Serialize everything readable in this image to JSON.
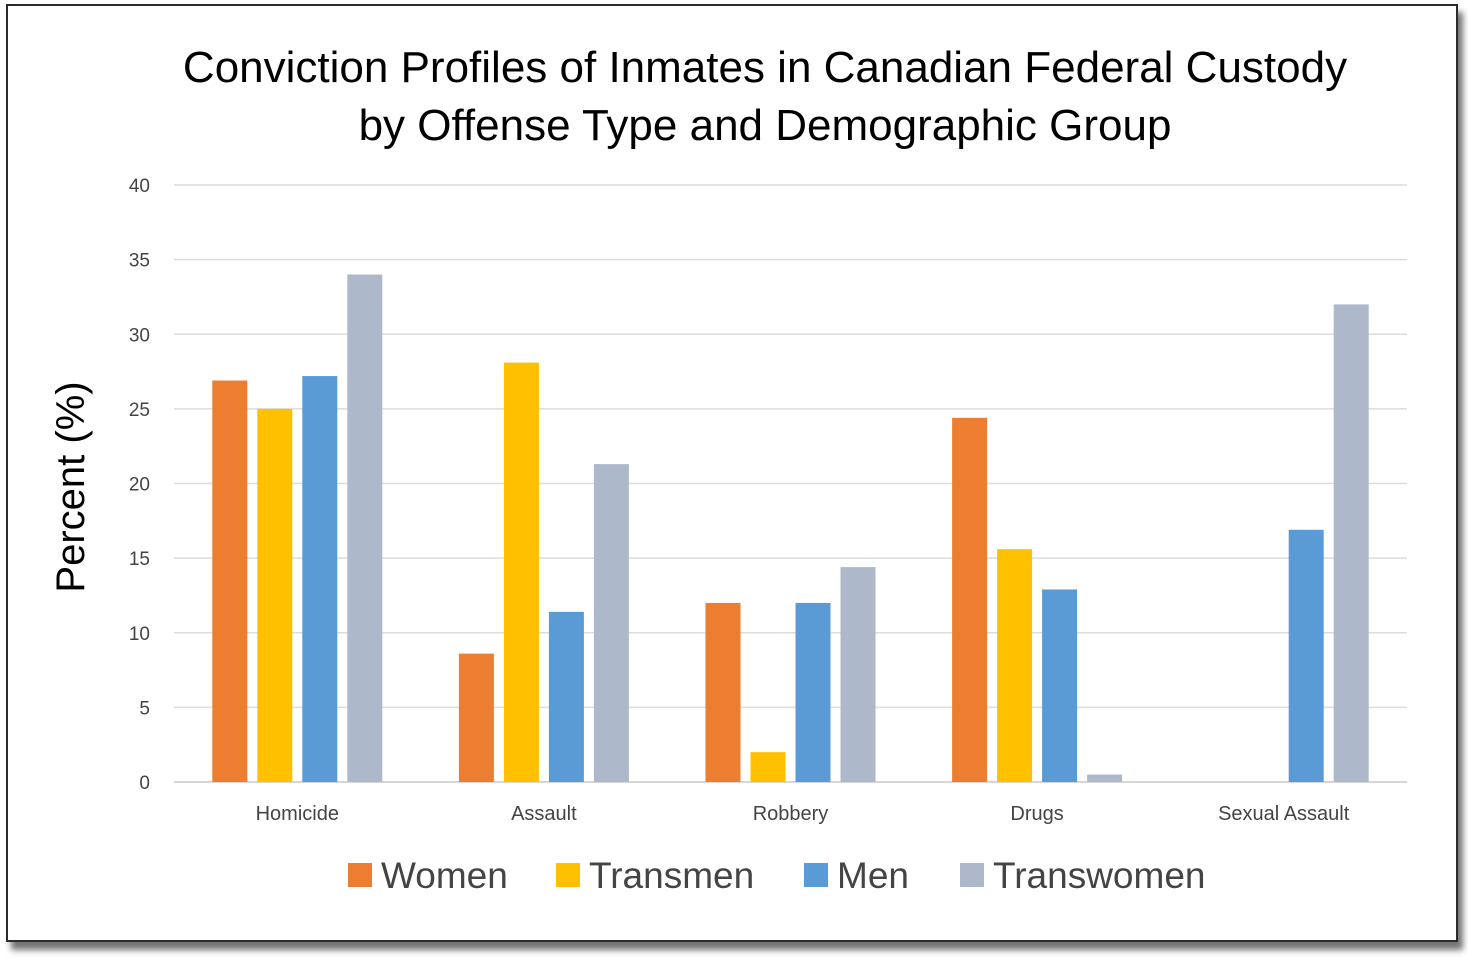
{
  "chart_data": {
    "type": "bar",
    "title_lines": [
      "Conviction Profiles of Inmates in Canadian Federal Custody",
      "by Offense Type and Demographic Group"
    ],
    "xlabel": "",
    "ylabel": "Percent (%)",
    "ylim": [
      0,
      40
    ],
    "yticks": [
      "0",
      "5",
      "10",
      "15",
      "20",
      "25",
      "30",
      "35",
      "40"
    ],
    "grid": true,
    "legend_position": "bottom",
    "categories": [
      "Homicide",
      "Assault",
      "Robbery",
      "Drugs",
      "Sexual Assault"
    ],
    "series": [
      {
        "name": "Women",
        "color": "#ED7D31",
        "values": [
          26.9,
          8.6,
          12.0,
          24.4,
          0
        ]
      },
      {
        "name": "Transmen",
        "color": "#FFC000",
        "values": [
          25.0,
          28.1,
          2.0,
          15.6,
          0
        ]
      },
      {
        "name": "Men",
        "color": "#5B9BD5",
        "values": [
          27.2,
          11.4,
          12.0,
          12.9,
          16.9
        ]
      },
      {
        "name": "Transwomen",
        "color": "#ADB9CA",
        "values": [
          34.0,
          21.3,
          14.4,
          0.5,
          32.0
        ]
      }
    ]
  }
}
